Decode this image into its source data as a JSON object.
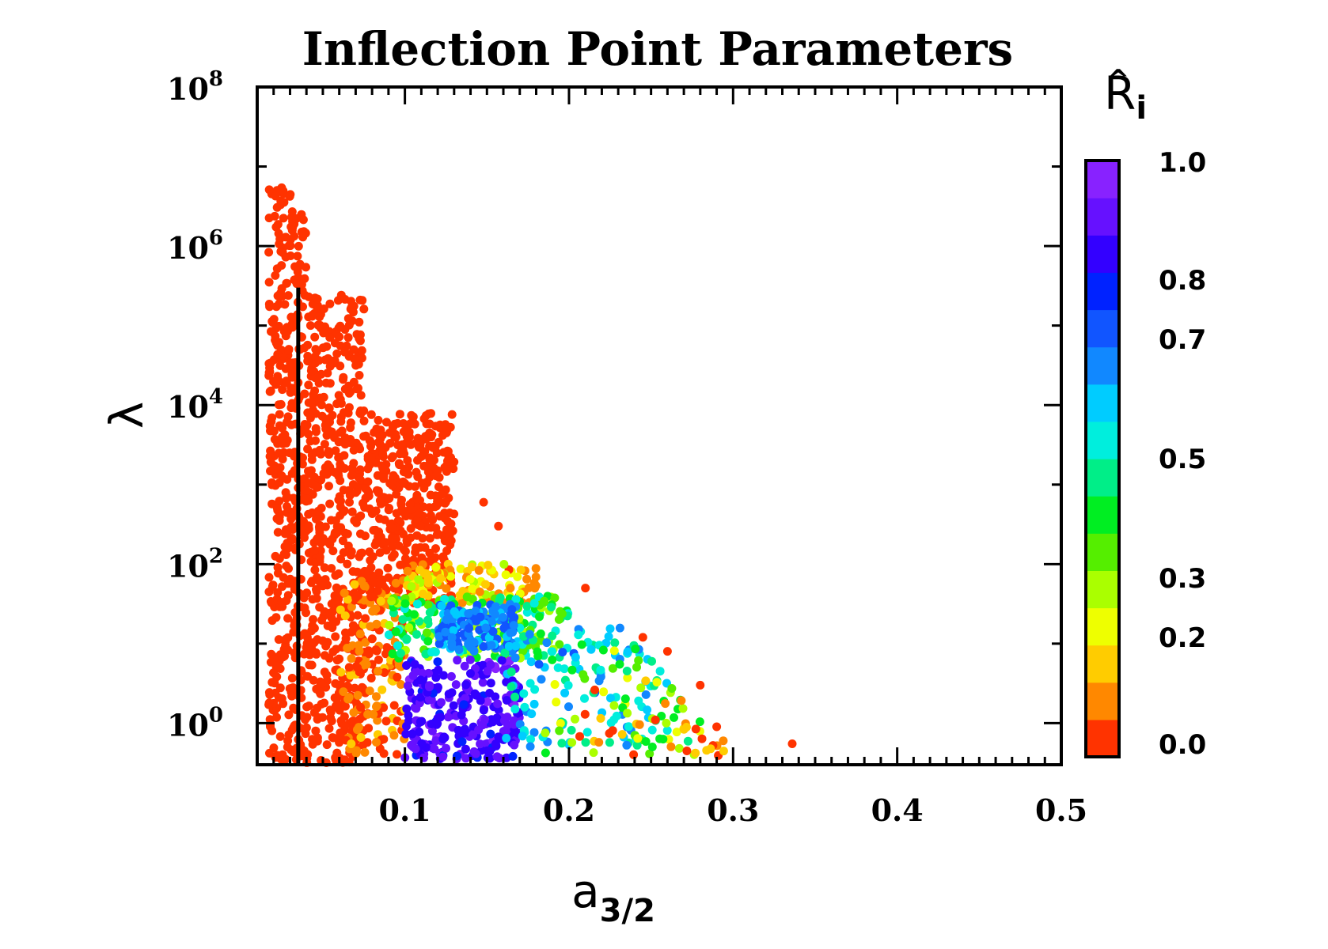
{
  "chart_data": {
    "type": "scatter",
    "title": "Inflection Point Parameters",
    "xlabel": "a",
    "xlabel_subscript": "3/2",
    "ylabel": "λ",
    "y_scale": "log",
    "xlim": [
      0.01,
      0.5
    ],
    "ylim": [
      0.3,
      100000000
    ],
    "x_ticks": [
      {
        "value": 0.1,
        "label": "0.1"
      },
      {
        "value": 0.2,
        "label": "0.2"
      },
      {
        "value": 0.3,
        "label": "0.3"
      },
      {
        "value": 0.4,
        "label": "0.4"
      },
      {
        "value": 0.5,
        "label": "0.5"
      }
    ],
    "y_ticks": [
      {
        "value": 1,
        "base": "10",
        "exp": "0"
      },
      {
        "value": 100,
        "base": "10",
        "exp": "2"
      },
      {
        "value": 10000,
        "base": "10",
        "exp": "4"
      },
      {
        "value": 1000000,
        "base": "10",
        "exp": "6"
      },
      {
        "value": 100000000,
        "base": "10",
        "exp": "8"
      }
    ],
    "vertical_line": {
      "x": 0.035,
      "y_from": 0.3,
      "y_to": 300000
    },
    "colorbar": {
      "title": "R",
      "title_hat": "^",
      "title_subscript": "i",
      "range": [
        0.0,
        1.0
      ],
      "labels": [
        "1.0",
        "0.8",
        "0.7",
        "0.5",
        "0.3",
        "0.2",
        "0.0"
      ],
      "label_values": [
        1.0,
        0.8,
        0.7,
        0.5,
        0.3,
        0.2,
        0.0
      ],
      "colors": [
        "#ff3300",
        "#ff8800",
        "#ffcc00",
        "#eeff00",
        "#aaff00",
        "#55ee00",
        "#00ee22",
        "#00ee88",
        "#00eedd",
        "#00ccff",
        "#1188ff",
        "#1155ff",
        "#0022ff",
        "#3300ff",
        "#6611ff",
        "#8822ff"
      ]
    },
    "series": [
      {
        "clusters": [
          {
            "x_range": [
              0.017,
              0.04
            ],
            "log_y_range": [
              -0.5,
              6.9
            ],
            "r_range": [
              0.0,
              0.02
            ],
            "count": 420
          },
          {
            "x_range": [
              0.04,
              0.075
            ],
            "log_y_range": [
              -0.5,
              5.4
            ],
            "r_range": [
              0.0,
              0.04
            ],
            "count": 520
          },
          {
            "x_range": [
              0.075,
              0.13
            ],
            "log_y_range": [
              1.5,
              3.9
            ],
            "r_range": [
              0.0,
              0.04
            ],
            "count": 420
          },
          {
            "x_range": [
              0.06,
              0.1
            ],
            "log_y_range": [
              -0.4,
              1.8
            ],
            "r_range": [
              0.0,
              0.15
            ],
            "count": 180
          },
          {
            "x_range": [
              0.1,
              0.18
            ],
            "log_y_range": [
              1.5,
              2.0
            ],
            "r_range": [
              0.05,
              0.3
            ],
            "count": 120
          },
          {
            "x_range": [
              0.09,
              0.2
            ],
            "log_y_range": [
              0.8,
              1.6
            ],
            "r_range": [
              0.25,
              0.55
            ],
            "count": 220
          },
          {
            "x_range": [
              0.12,
              0.17
            ],
            "log_y_range": [
              0.9,
              1.5
            ],
            "r_range": [
              0.6,
              0.75
            ],
            "count": 140
          },
          {
            "x_range": [
              0.1,
              0.17
            ],
            "log_y_range": [
              -0.45,
              0.8
            ],
            "r_range": [
              0.8,
              0.95
            ],
            "count": 260
          },
          {
            "x_range": [
              0.16,
              0.26
            ],
            "log_y_range": [
              -0.3,
              1.2
            ],
            "r_range": [
              0.45,
              0.7
            ],
            "count": 120
          },
          {
            "x_range": [
              0.18,
              0.28
            ],
            "log_y_range": [
              -0.4,
              1.0
            ],
            "r_range": [
              0.2,
              0.45
            ],
            "count": 60
          },
          {
            "x_range": [
              0.2,
              0.3
            ],
            "log_y_range": [
              -0.45,
              0.6
            ],
            "r_range": [
              0.0,
              0.2
            ],
            "count": 30
          }
        ],
        "outliers": [
          {
            "x": 0.336,
            "y": 0.55,
            "r": 0.0
          },
          {
            "x": 0.294,
            "y": 0.6,
            "r": 0.1
          },
          {
            "x": 0.29,
            "y": 0.9,
            "r": 0.0
          },
          {
            "x": 0.28,
            "y": 3.0,
            "r": 0.0
          },
          {
            "x": 0.26,
            "y": 8.0,
            "r": 0.05
          },
          {
            "x": 0.245,
            "y": 12.0,
            "r": 0.0
          },
          {
            "x": 0.21,
            "y": 50.0,
            "r": 0.0
          },
          {
            "x": 0.157,
            "y": 300.0,
            "r": 0.0
          },
          {
            "x": 0.148,
            "y": 600.0,
            "r": 0.0
          },
          {
            "x": 0.12,
            "y": 1500.0,
            "r": 0.0
          }
        ]
      }
    ]
  }
}
